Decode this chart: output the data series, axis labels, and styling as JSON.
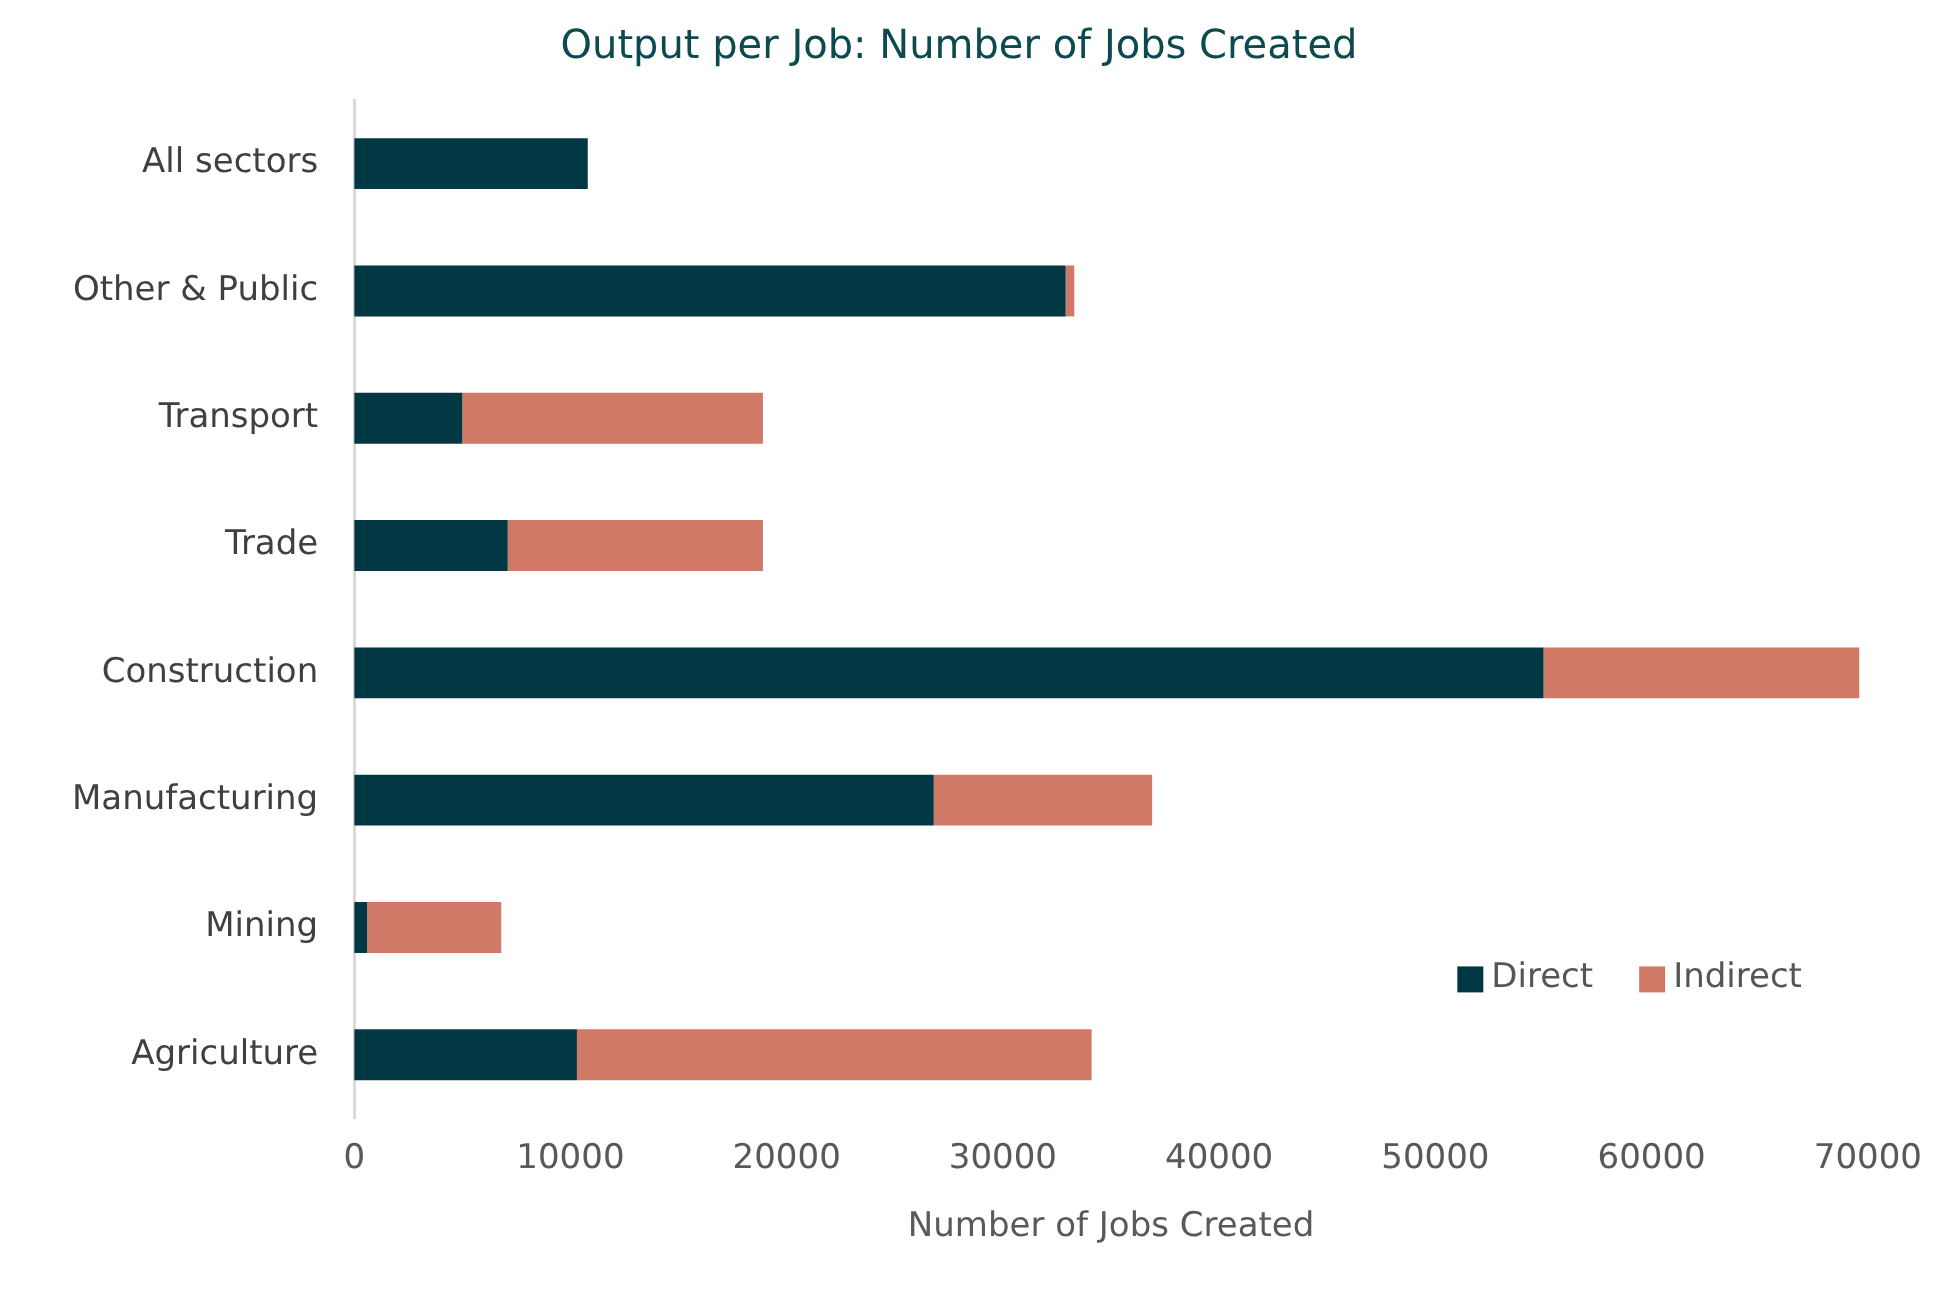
{
  "chart_data": {
    "type": "bar",
    "orientation": "horizontal",
    "stacked": true,
    "title": "Output per Job: Number of Jobs Created",
    "xlabel": "Number of Jobs Created",
    "categories": [
      "All sectors",
      "Other & Public",
      "Transport",
      "Trade",
      "Construction",
      "Manufacturing",
      "Mining",
      "Agriculture"
    ],
    "series": [
      {
        "name": "Direct",
        "color": "#023843",
        "values": [
          10800,
          32900,
          5000,
          7100,
          55000,
          26800,
          600,
          10300
        ]
      },
      {
        "name": "Indirect",
        "color": "#d07967",
        "values": [
          null,
          400,
          13900,
          11800,
          14600,
          10100,
          6200,
          23800
        ]
      }
    ],
    "xlim": [
      0,
      70000
    ],
    "xticks": [
      0,
      10000,
      20000,
      30000,
      40000,
      50000,
      60000,
      70000
    ],
    "grid": false,
    "legend": "bottom right"
  }
}
